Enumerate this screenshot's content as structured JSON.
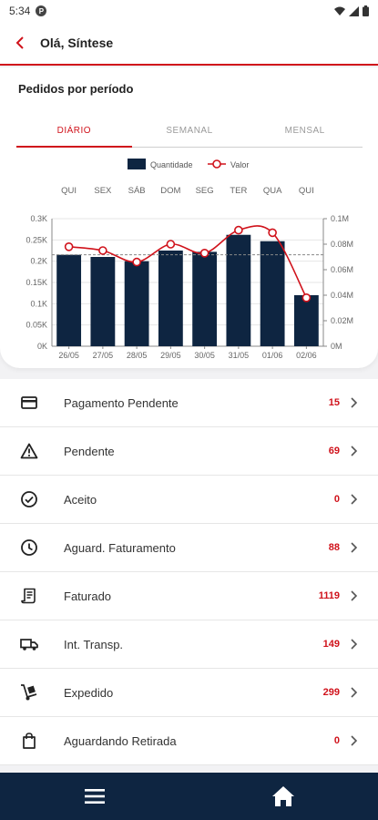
{
  "status_bar": {
    "time": "5:34",
    "app_badge": "P",
    "icons": [
      "wifi-icon",
      "signal-icon",
      "battery-icon"
    ]
  },
  "header": {
    "title": "Olá, Síntese",
    "back_icon": "chevron-left-icon"
  },
  "section": {
    "title": "Pedidos por período"
  },
  "tabs": [
    {
      "label": "DIÁRIO",
      "active": true
    },
    {
      "label": "SEMANAL",
      "active": false
    },
    {
      "label": "MENSAL",
      "active": false
    }
  ],
  "chart_data": {
    "type": "bar",
    "legend": [
      {
        "name": "Quantidade",
        "kind": "bar"
      },
      {
        "name": "Valor",
        "kind": "line"
      }
    ],
    "legend_position": "top-center",
    "weekdays": [
      "QUI",
      "SEX",
      "SÁB",
      "DOM",
      "SEG",
      "TER",
      "QUA",
      "QUI"
    ],
    "categories": [
      "26/05",
      "27/05",
      "28/05",
      "29/05",
      "30/05",
      "31/05",
      "01/06",
      "02/06"
    ],
    "series": [
      {
        "name": "Quantidade",
        "axis": "left",
        "values": [
          215,
          210,
          200,
          225,
          222,
          262,
          247,
          120
        ]
      },
      {
        "name": "Valor",
        "axis": "right",
        "values": [
          0.078,
          0.075,
          0.066,
          0.08,
          0.073,
          0.091,
          0.089,
          0.038
        ]
      }
    ],
    "average_line_left": 215,
    "y_left": {
      "lim": [
        0,
        300
      ],
      "ticks": [
        0,
        50,
        100,
        150,
        200,
        250,
        300
      ],
      "tick_labels": [
        "0K",
        "0.05K",
        "0.1K",
        "0.15K",
        "0.2K",
        "0.25K",
        "0.3K"
      ]
    },
    "y_right": {
      "lim": [
        0,
        0.1
      ],
      "ticks": [
        0,
        0.02,
        0.04,
        0.06,
        0.08,
        0.1
      ],
      "tick_labels": [
        "0M",
        "0.02M",
        "0.04M",
        "0.06M",
        "0.08M",
        "0.1M"
      ]
    },
    "grid": true,
    "colors": {
      "bar": "#0e2541",
      "line": "#d0121b",
      "grid": "#e6e6e6",
      "average": "#888888"
    }
  },
  "list": [
    {
      "label": "Pagamento Pendente",
      "count": "15",
      "icon": "credit-card-icon"
    },
    {
      "label": "Pendente",
      "count": "69",
      "icon": "warning-icon"
    },
    {
      "label": "Aceito",
      "count": "0",
      "icon": "check-circle-icon"
    },
    {
      "label": "Aguard. Faturamento",
      "count": "88",
      "icon": "clock-icon"
    },
    {
      "label": "Faturado",
      "count": "1119",
      "icon": "receipt-icon"
    },
    {
      "label": "Int. Transp.",
      "count": "149",
      "icon": "truck-icon"
    },
    {
      "label": "Expedido",
      "count": "299",
      "icon": "dolly-icon"
    },
    {
      "label": "Aguardando Retirada",
      "count": "0",
      "icon": "shopping-bag-icon"
    }
  ],
  "bottom_nav": [
    {
      "name": "menu",
      "icon": "hamburger-icon"
    },
    {
      "name": "home",
      "icon": "home-icon"
    }
  ]
}
